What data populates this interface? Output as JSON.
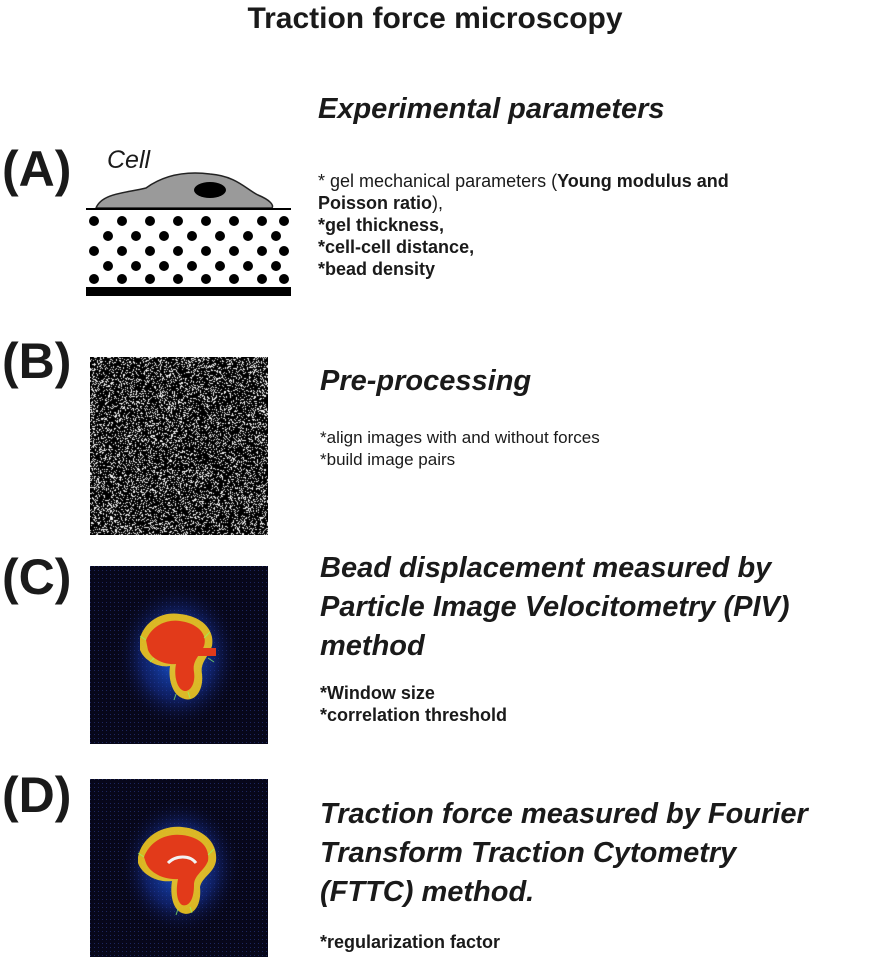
{
  "title": "Traction force microscopy",
  "panels": {
    "A": {
      "letter": "(A)",
      "cell_label": "Cell",
      "heading": "Experimental parameters",
      "params": {
        "l1_prefix": "* gel mechanical parameters (",
        "l1_bold": "Young modulus and",
        "l2_bold": " Poisson ratio",
        "l2_suffix": "),",
        "l3": "*gel thickness,",
        "l4": "*cell-cell distance,",
        "l5": "*bead density"
      }
    },
    "B": {
      "letter": "(B)",
      "heading": "Pre-processing",
      "params": [
        "*align images with and without forces",
        "*build image pairs"
      ]
    },
    "C": {
      "letter": "(C)",
      "heading_lines": [
        "Bead displacement measured by",
        "Particle Image Velocitometry (PIV)",
        "method"
      ],
      "params": [
        "*Window size",
        "*correlation threshold"
      ]
    },
    "D": {
      "letter": "(D)",
      "heading_lines": [
        "Traction force measured by Fourier",
        "Transform Traction Cytometry",
        "(FTTC) method."
      ],
      "params": [
        "*regularization factor"
      ]
    }
  }
}
